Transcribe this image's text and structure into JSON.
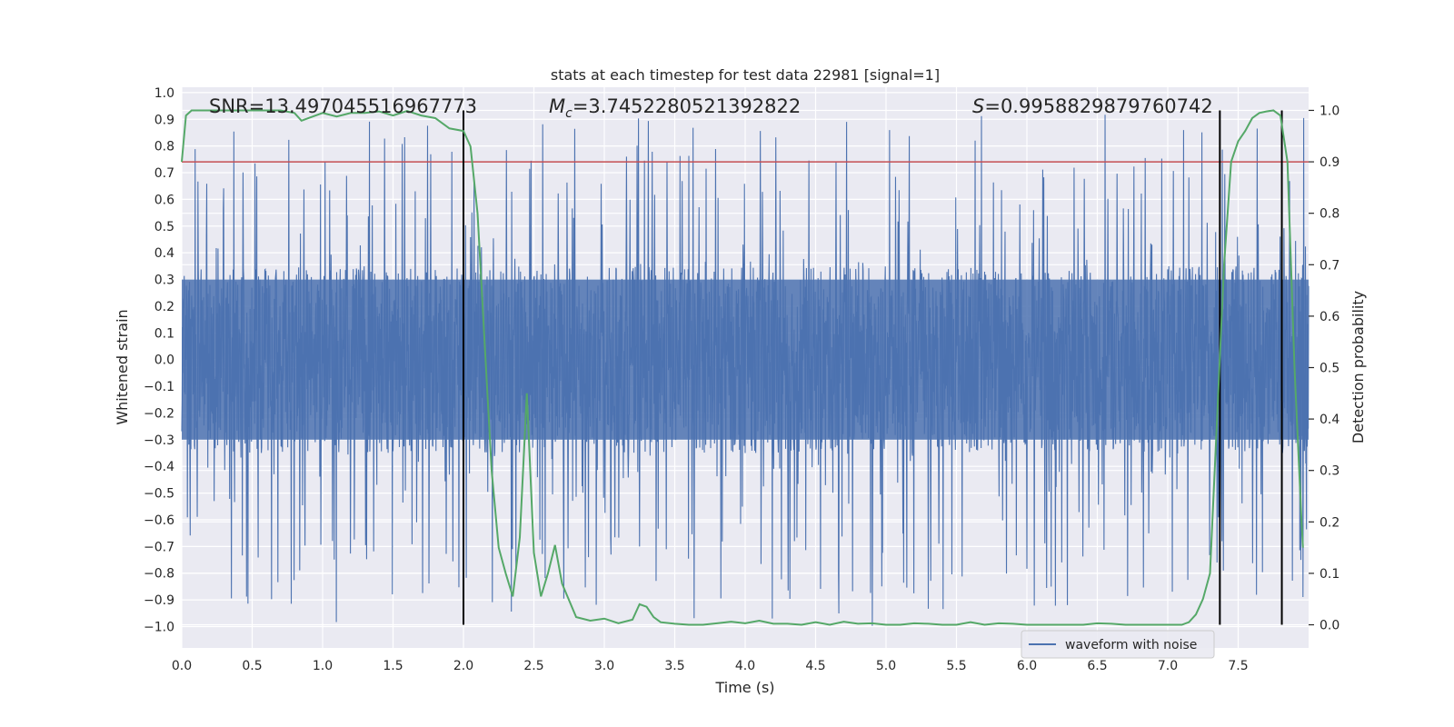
{
  "chart_data": {
    "type": "line",
    "title": "stats at each timestep for test data 22981 [signal=1]",
    "xlabel": "Time (s)",
    "ylabel": "Whitened strain",
    "y2label": "Detection probability",
    "xlim": [
      0.0,
      8.0
    ],
    "ylim": [
      -1.08,
      1.02
    ],
    "y2lim": [
      -0.045,
      1.045
    ],
    "xticks": [
      0.0,
      0.5,
      1.0,
      1.5,
      2.0,
      2.5,
      3.0,
      3.5,
      4.0,
      4.5,
      5.0,
      5.5,
      6.0,
      6.5,
      7.0,
      7.5
    ],
    "xtick_labels": [
      "0.0",
      "0.5",
      "1.0",
      "1.5",
      "2.0",
      "2.5",
      "3.0",
      "3.5",
      "4.0",
      "4.5",
      "5.0",
      "5.5",
      "6.0",
      "6.5",
      "7.0",
      "7.5"
    ],
    "yticks": [
      1.0,
      0.9,
      0.8,
      0.7,
      0.6,
      0.5,
      0.4,
      0.3,
      0.2,
      0.1,
      0.0,
      -0.1,
      -0.2,
      -0.3,
      -0.4,
      -0.5,
      -0.6,
      -0.7,
      -0.8,
      -0.9,
      -1.0
    ],
    "ytick_labels": [
      "1.0",
      "0.9",
      "0.8",
      "0.7",
      "0.6",
      "0.5",
      "0.4",
      "0.3",
      "0.2",
      "0.1",
      "0.0",
      "−0.1",
      "−0.2",
      "−0.3",
      "−0.4",
      "−0.5",
      "−0.6",
      "−0.7",
      "−0.8",
      "−0.9",
      "−1.0"
    ],
    "y2ticks": [
      1.0,
      0.9,
      0.8,
      0.7,
      0.6,
      0.5,
      0.4,
      0.3,
      0.2,
      0.1,
      0.0
    ],
    "y2tick_labels": [
      "1.0",
      "0.9",
      "0.8",
      "0.7",
      "0.6",
      "0.5",
      "0.4",
      "0.3",
      "0.2",
      "0.1",
      "0.0"
    ],
    "grid": true,
    "legend_position": "bottom-right",
    "annotations": {
      "snr": "SNR=13.497045516967773",
      "mc_symbol": "M",
      "mc_subscript": "c",
      "mc_value": "=3.7452280521392822",
      "s_symbol": "S",
      "s_value": "=0.9958829879760742"
    },
    "threshold": {
      "axis": "y2",
      "value": 0.9,
      "color": "#c44e52"
    },
    "vertical_lines": {
      "x": [
        2.0,
        7.37,
        7.81
      ],
      "y2_range": [
        0.0,
        1.0
      ],
      "color": "#000000"
    },
    "series": [
      {
        "name": "waveform with noise",
        "axis": "y",
        "color": "#4c72b0",
        "style": "dense-noise",
        "x_range": [
          0.0,
          8.0
        ],
        "typical_envelope": [
          -0.35,
          0.35
        ],
        "peak_range": [
          -1.0,
          0.92
        ]
      },
      {
        "axis": "y2",
        "color": "#55a868",
        "x": [
          0.0,
          0.03,
          0.07,
          0.1,
          0.2,
          0.3,
          0.4,
          0.5,
          0.6,
          0.7,
          0.8,
          0.85,
          0.9,
          1.0,
          1.1,
          1.2,
          1.3,
          1.4,
          1.5,
          1.6,
          1.7,
          1.8,
          1.9,
          2.0,
          2.05,
          2.1,
          2.15,
          2.2,
          2.25,
          2.3,
          2.35,
          2.4,
          2.45,
          2.5,
          2.55,
          2.6,
          2.65,
          2.7,
          2.8,
          2.9,
          3.0,
          3.1,
          3.2,
          3.25,
          3.3,
          3.35,
          3.4,
          3.5,
          3.6,
          3.7,
          3.8,
          3.9,
          4.0,
          4.1,
          4.2,
          4.3,
          4.4,
          4.5,
          4.6,
          4.7,
          4.8,
          4.9,
          5.0,
          5.1,
          5.2,
          5.3,
          5.4,
          5.5,
          5.6,
          5.7,
          5.8,
          5.9,
          6.0,
          6.1,
          6.2,
          6.3,
          6.4,
          6.5,
          6.6,
          6.7,
          6.8,
          6.9,
          7.0,
          7.1,
          7.15,
          7.2,
          7.25,
          7.3,
          7.35,
          7.4,
          7.45,
          7.5,
          7.55,
          7.6,
          7.65,
          7.7,
          7.75,
          7.8,
          7.85,
          7.9,
          7.95,
          8.0
        ],
        "values": [
          0.9,
          0.99,
          1.0,
          1.0,
          1.0,
          1.0,
          1.0,
          1.0,
          1.0,
          1.0,
          0.995,
          0.98,
          0.985,
          0.995,
          0.988,
          0.995,
          0.995,
          0.998,
          0.99,
          0.999,
          0.99,
          0.985,
          0.965,
          0.96,
          0.93,
          0.8,
          0.55,
          0.3,
          0.15,
          0.1,
          0.055,
          0.17,
          0.45,
          0.14,
          0.055,
          0.1,
          0.155,
          0.08,
          0.015,
          0.008,
          0.012,
          0.003,
          0.01,
          0.04,
          0.035,
          0.015,
          0.005,
          0.002,
          0.0,
          0.0,
          0.003,
          0.006,
          0.003,
          0.008,
          0.002,
          0.002,
          0.0,
          0.005,
          0.0,
          0.006,
          0.002,
          0.003,
          0.0,
          0.0,
          0.003,
          0.002,
          0.0,
          0.0,
          0.005,
          0.0,
          0.003,
          0.002,
          0.0,
          0.0,
          0.0,
          0.0,
          0.0,
          0.003,
          0.002,
          0.0,
          0.0,
          0.0,
          0.0,
          0.0,
          0.005,
          0.02,
          0.05,
          0.1,
          0.4,
          0.7,
          0.9,
          0.94,
          0.96,
          0.985,
          0.995,
          0.998,
          1.0,
          0.99,
          0.9,
          0.5,
          0.2,
          0.15
        ]
      }
    ]
  }
}
